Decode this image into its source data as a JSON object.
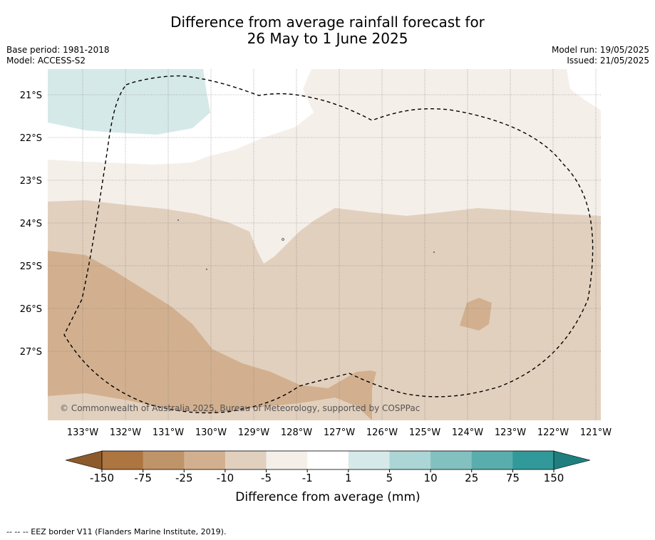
{
  "title": {
    "line1": "Difference from average rainfall forecast for",
    "line2": "26 May to 1 June 2025"
  },
  "meta_left": {
    "base_period": "Base period: 1981-2018",
    "model": "Model: ACCESS-S2"
  },
  "meta_right": {
    "model_run": "Model run: 19/05/2025",
    "issued": "Issued: 21/05/2025"
  },
  "map": {
    "copyright": "© Commonwealth of Australia 2025, Bureau of Meteorology, supported by COSPPac",
    "lat_labels": [
      "21°S",
      "22°S",
      "23°S",
      "24°S",
      "25°S",
      "26°S",
      "27°S"
    ],
    "lon_labels": [
      "133°W",
      "132°W",
      "131°W",
      "130°W",
      "129°W",
      "128°W",
      "127°W",
      "126°W",
      "125°W",
      "124°W",
      "123°W",
      "122°W",
      "121°W"
    ]
  },
  "colorbar": {
    "label": "Difference from average (mm)",
    "ticks": [
      "-150",
      "-75",
      "-25",
      "-10",
      "-5",
      "-1",
      "1",
      "5",
      "10",
      "25",
      "75",
      "150"
    ],
    "colors": [
      "#ad753f",
      "#c09469",
      "#d2b08f",
      "#e2d0be",
      "#f5efea",
      "#ffffff",
      "#d6e9e9",
      "#acd5d5",
      "#83c1c1",
      "#5aadad",
      "#319999"
    ],
    "extend_low_color": "#8c5a2b",
    "extend_high_color": "#1f7f7f"
  },
  "footer": "-- -- -- EEZ border V11 (Flanders Marine Institute, 2019)."
}
